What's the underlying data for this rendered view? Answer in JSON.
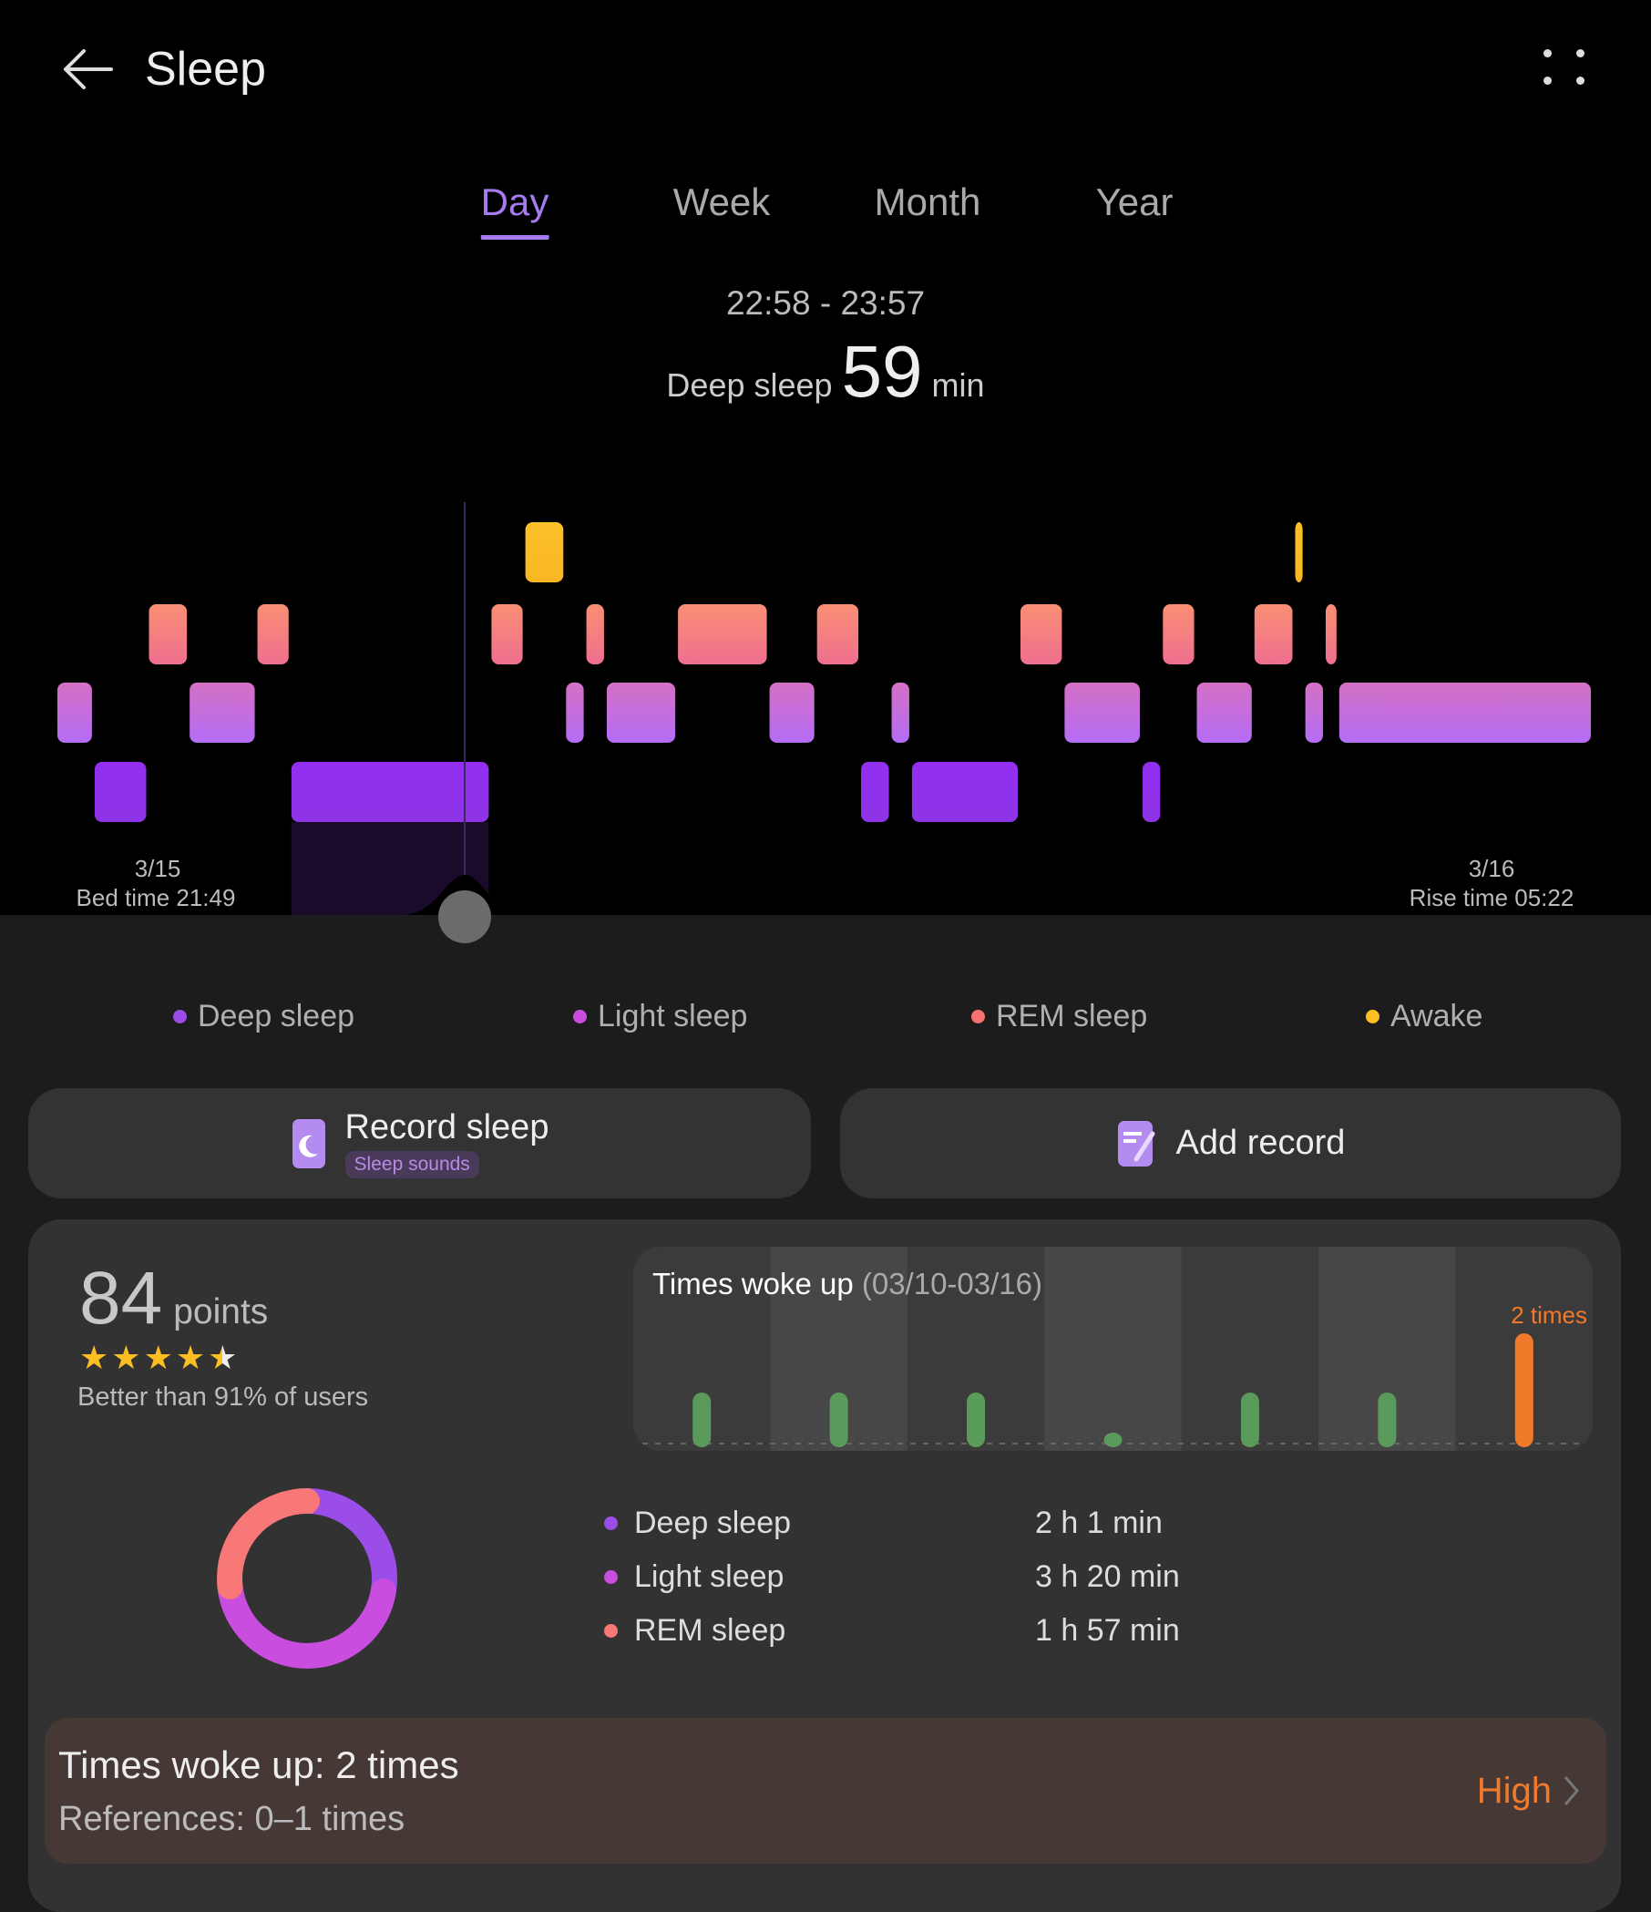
{
  "header": {
    "title": "Sleep",
    "back_icon": "arrow-left-icon",
    "menu_icon": "more-dots-icon"
  },
  "tabs": [
    {
      "label": "Day",
      "active": true
    },
    {
      "label": "Week"
    },
    {
      "label": "Month"
    },
    {
      "label": "Year"
    }
  ],
  "selection": {
    "range": "22:58 - 23:57",
    "stage_label": "Deep sleep",
    "value": "59",
    "unit": "min"
  },
  "timeline": {
    "start_date": "3/15",
    "bed_time": "Bed time 21:49",
    "end_date": "3/16",
    "rise_time": "Rise time 05:22",
    "total_minutes": 453,
    "stages": [
      {
        "stage": "light",
        "start": 0,
        "end": 11
      },
      {
        "stage": "deep",
        "start": 11,
        "end": 27
      },
      {
        "stage": "rem",
        "start": 27,
        "end": 39
      },
      {
        "stage": "light",
        "start": 39,
        "end": 59
      },
      {
        "stage": "rem",
        "start": 59,
        "end": 69
      },
      {
        "stage": "deep",
        "start": 69,
        "end": 128,
        "selected": true
      },
      {
        "stage": "rem",
        "start": 128,
        "end": 138
      },
      {
        "stage": "awake",
        "start": 138,
        "end": 150
      },
      {
        "stage": "light",
        "start": 150,
        "end": 156
      },
      {
        "stage": "rem",
        "start": 156,
        "end": 162
      },
      {
        "stage": "light",
        "start": 162,
        "end": 183
      },
      {
        "stage": "rem",
        "start": 183,
        "end": 210
      },
      {
        "stage": "light",
        "start": 210,
        "end": 224
      },
      {
        "stage": "rem",
        "start": 224,
        "end": 237
      },
      {
        "stage": "deep",
        "start": 237,
        "end": 246
      },
      {
        "stage": "light",
        "start": 246,
        "end": 252
      },
      {
        "stage": "deep",
        "start": 252,
        "end": 284
      },
      {
        "stage": "rem",
        "start": 284,
        "end": 297
      },
      {
        "stage": "light",
        "start": 297,
        "end": 320
      },
      {
        "stage": "deep",
        "start": 320,
        "end": 326
      },
      {
        "stage": "rem",
        "start": 326,
        "end": 336
      },
      {
        "stage": "light",
        "start": 336,
        "end": 353
      },
      {
        "stage": "rem",
        "start": 353,
        "end": 365
      },
      {
        "stage": "awake",
        "start": 365,
        "end": 368
      },
      {
        "stage": "light",
        "start": 368,
        "end": 374
      },
      {
        "stage": "rem",
        "start": 374,
        "end": 378
      },
      {
        "stage": "light",
        "start": 378,
        "end": 453
      }
    ]
  },
  "legend": [
    {
      "label": "Deep sleep",
      "color": "#9b4de8"
    },
    {
      "label": "Light sleep",
      "color": "#c94ddf"
    },
    {
      "label": "REM sleep",
      "color": "#f87272"
    },
    {
      "label": "Awake",
      "color": "#fbbf24"
    }
  ],
  "actions": {
    "record_sleep": "Record sleep",
    "sleep_sounds": "Sleep sounds",
    "add_record": "Add record"
  },
  "score": {
    "value": "84",
    "unit": "points",
    "stars": 4.5,
    "comparison": "Better than 91% of users"
  },
  "woke_chart": {
    "title": "Times woke up",
    "range": "(03/10-03/16)",
    "values": [
      1,
      1,
      1,
      0,
      1,
      1,
      2
    ],
    "highlight_label": "2 times",
    "normal_color": "#5a9a5a",
    "highlight_color": "#f07a2a"
  },
  "breakdown": [
    {
      "label": "Deep sleep",
      "value": "2 h 1 min",
      "minutes": 121,
      "color": "#9b4de8"
    },
    {
      "label": "Light sleep",
      "value": "3 h 20 min",
      "minutes": 200,
      "color": "#c94ddf"
    },
    {
      "label": "REM sleep",
      "value": "1 h 57 min",
      "minutes": 117,
      "color": "#f87878"
    }
  ],
  "woke_summary": {
    "title": "Times woke up: 2 times",
    "reference": "References: 0–1 times",
    "level": "High"
  }
}
